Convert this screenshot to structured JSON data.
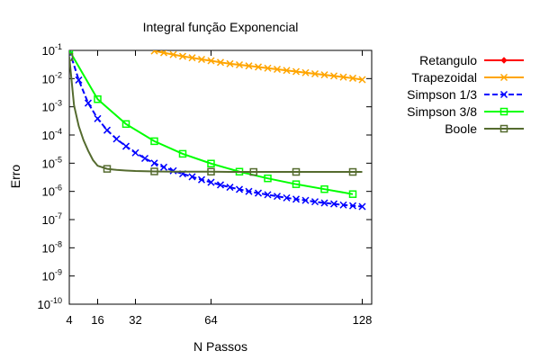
{
  "chart_data": {
    "type": "line",
    "title": "Integral função Exponencial",
    "xlabel": "N Passos",
    "ylabel": "Erro",
    "xscale": "linear",
    "yscale": "log",
    "xlim": [
      4,
      132
    ],
    "ylim": [
      1e-10,
      0.1
    ],
    "x_ticks": [
      4,
      16,
      32,
      64,
      128
    ],
    "y_ticks": [
      {
        "value": 0.1,
        "base": "10",
        "exp": "-1"
      },
      {
        "value": 0.01,
        "base": "10",
        "exp": "-2"
      },
      {
        "value": 0.001,
        "base": "10",
        "exp": "-3"
      },
      {
        "value": 0.0001,
        "base": "10",
        "exp": "-4"
      },
      {
        "value": 1e-05,
        "base": "10",
        "exp": "-5"
      },
      {
        "value": 1e-06,
        "base": "10",
        "exp": "-6"
      },
      {
        "value": 1e-07,
        "base": "10",
        "exp": "-7"
      },
      {
        "value": 1e-08,
        "base": "10",
        "exp": "-8"
      },
      {
        "value": 1e-09,
        "base": "10",
        "exp": "-9"
      },
      {
        "value": 1e-10,
        "base": "10",
        "exp": "-10"
      }
    ],
    "grid": false,
    "legend_position": "outside-right",
    "series": [
      {
        "name": "Retangulo",
        "color": "#ff0000",
        "marker": "diamond",
        "x": [],
        "y": []
      },
      {
        "name": "Trapezoidal",
        "color": "#ffa500",
        "marker": "cross",
        "x": [
          40,
          44,
          48,
          52,
          56,
          60,
          64,
          68,
          72,
          76,
          80,
          84,
          88,
          92,
          96,
          100,
          104,
          108,
          112,
          116,
          120,
          124,
          128
        ],
        "y": [
          0.0955,
          0.0827,
          0.0712,
          0.0617,
          0.0548,
          0.048,
          0.0429,
          0.0376,
          0.0336,
          0.0309,
          0.0283,
          0.0258,
          0.0234,
          0.0214,
          0.0195,
          0.0178,
          0.0162,
          0.0148,
          0.0136,
          0.0124,
          0.0113,
          0.0103,
          0.0092
        ]
      },
      {
        "name": "Simpson 1/3",
        "color": "#0000ff",
        "marker": "cross",
        "x": [
          4,
          8,
          12,
          16,
          20,
          24,
          28,
          32,
          36,
          40,
          44,
          48,
          52,
          56,
          60,
          64,
          68,
          72,
          76,
          80,
          84,
          88,
          92,
          96,
          100,
          104,
          108,
          112,
          116,
          120,
          124,
          128
        ],
        "y": [
          0.1,
          0.0089,
          0.00135,
          0.00038,
          0.000148,
          7.24e-05,
          3.97e-05,
          2.34e-05,
          1.48e-05,
          1e-05,
          7.2e-06,
          5.4e-06,
          4.2e-06,
          3.3e-06,
          2.6e-06,
          2.1e-06,
          1.7e-06,
          1.4e-06,
          1.18e-06,
          1e-06,
          8.7e-07,
          7.6e-07,
          6.7e-07,
          5.9e-07,
          5.3e-07,
          4.8e-07,
          4.3e-07,
          3.9e-07,
          3.6e-07,
          3.3e-07,
          3.1e-07,
          2.9e-07
        ]
      },
      {
        "name": "Simpson 3/8",
        "color": "#00ff00",
        "marker": "square",
        "x": [
          4,
          16,
          28,
          40,
          52,
          64,
          76,
          88,
          100,
          112,
          124
        ],
        "y": [
          0.1,
          0.00186,
          0.000245,
          6.03e-05,
          2.15e-05,
          9.7e-06,
          5e-06,
          2.9e-06,
          1.8e-06,
          1.2e-06,
          8e-07
        ]
      },
      {
        "name": "Boole",
        "color": "#556b2f",
        "marker": "square",
        "x": [
          4,
          6,
          8,
          10,
          12,
          14,
          16,
          20,
          24,
          28,
          32,
          36,
          40,
          48,
          56,
          64,
          72,
          80,
          88,
          96,
          104,
          112,
          120,
          128
        ],
        "y": [
          0.0576,
          0.00113,
          0.000206,
          6.6e-05,
          2.75e-05,
          1.3e-05,
          8.1e-06,
          6.3e-06,
          5.8e-06,
          5.5e-06,
          5.3e-06,
          5.2e-06,
          5.1e-06,
          5e-06,
          5e-06,
          5e-06,
          4.9e-06,
          4.9e-06,
          4.9e-06,
          4.9e-06,
          4.9e-06,
          4.9e-06,
          4.9e-06,
          4.9e-06
        ],
        "marker_x": [
          4,
          20,
          40,
          64,
          82,
          100,
          124
        ]
      }
    ]
  }
}
